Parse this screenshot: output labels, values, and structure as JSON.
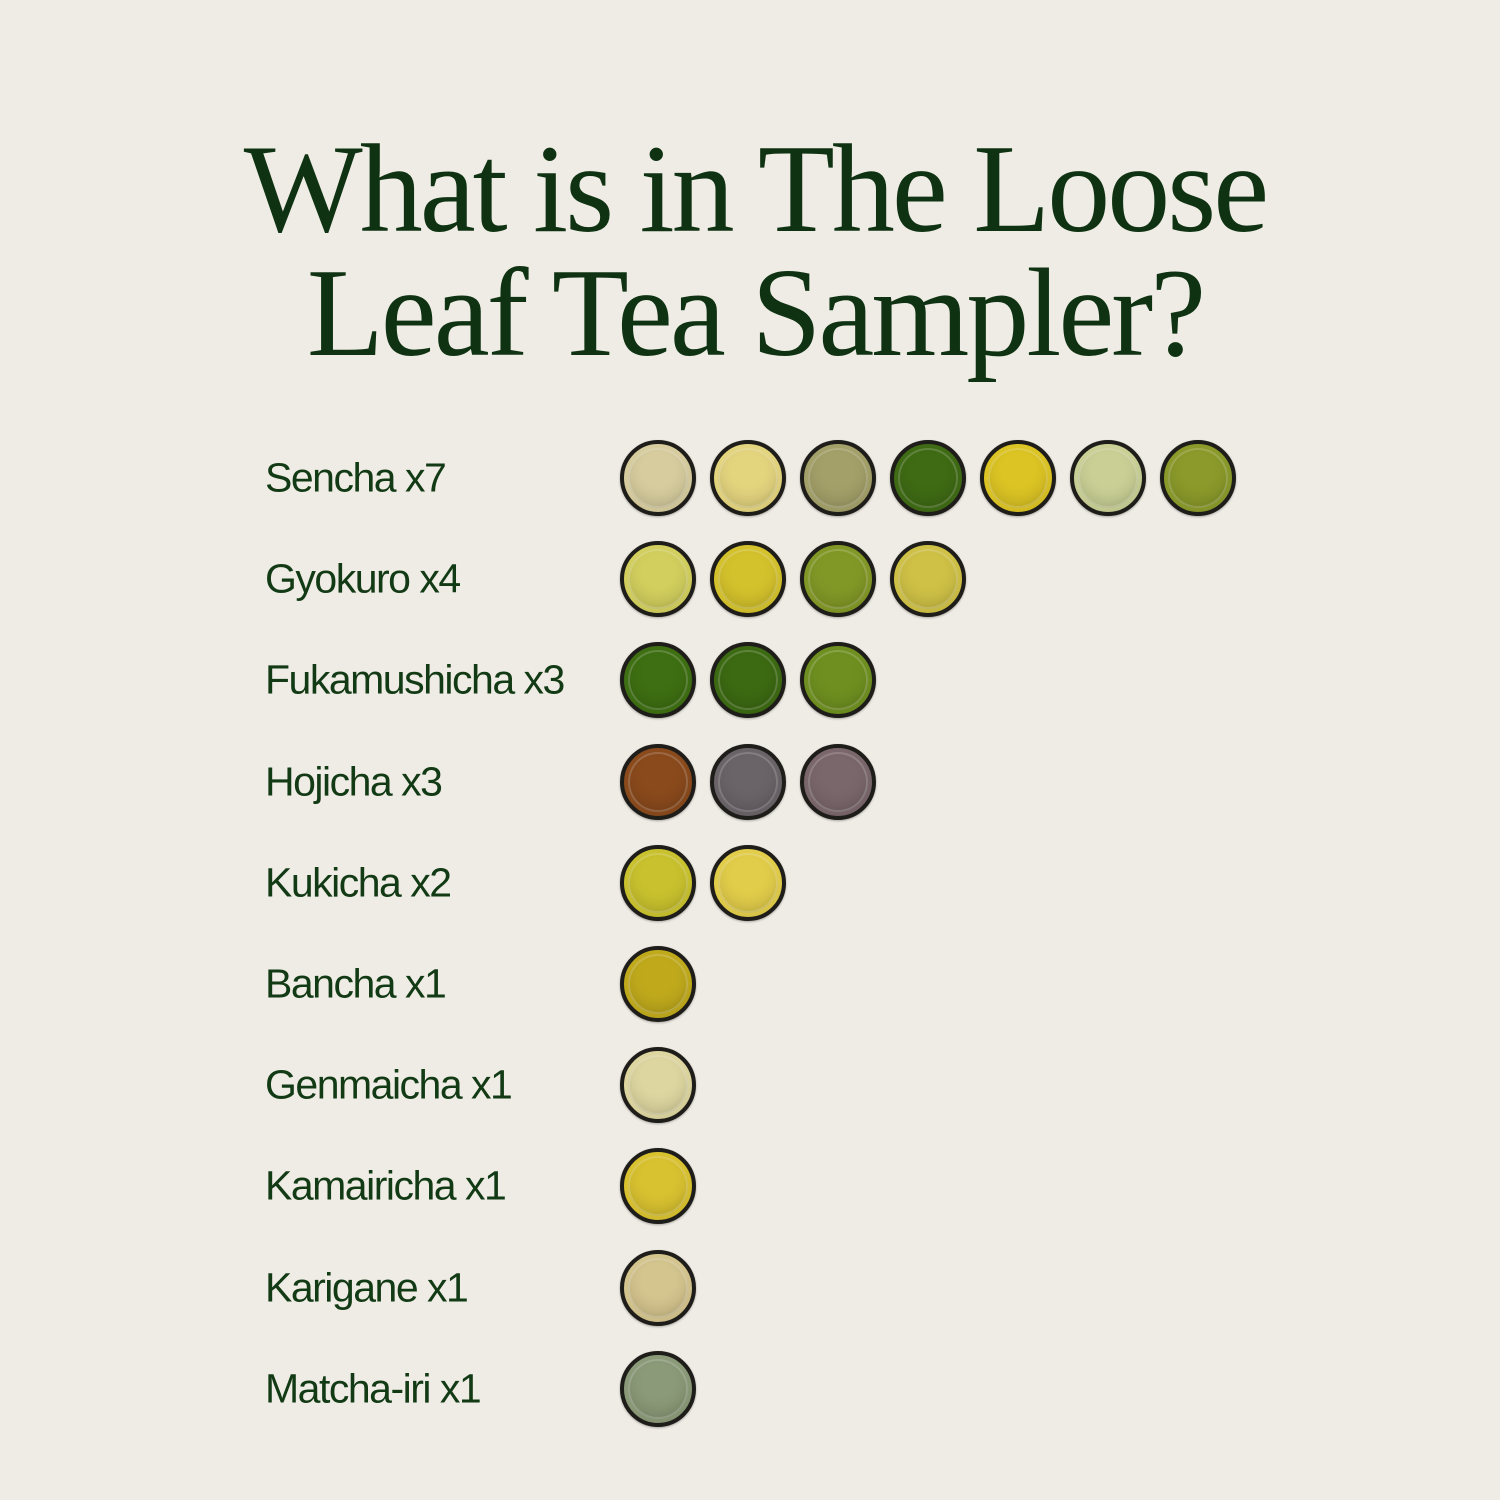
{
  "title": {
    "line1": "What is in The Loose",
    "line2": "Leaf Tea Sampler?"
  },
  "chart_data": {
    "type": "pictogram",
    "title": "What is in The Loose Leaf Tea Sampler?",
    "categories": [
      "Sencha",
      "Gyokuro",
      "Fukamushicha",
      "Hojicha",
      "Kukicha",
      "Bancha",
      "Genmaicha",
      "Kamairicha",
      "Karigane",
      "Matcha-iri"
    ],
    "values": [
      7,
      4,
      3,
      3,
      2,
      1,
      1,
      1,
      1,
      1
    ],
    "labels": [
      "Sencha x7",
      "Gyokuro x4",
      "Fukamushicha x3",
      "Hojicha x3",
      "Kukicha x2",
      "Bancha x1",
      "Genmaicha x1",
      "Kamairicha x1",
      "Karigane x1",
      "Matcha-iri x1"
    ],
    "cup_colors": [
      [
        "#d6cc9e",
        "#e3d47e",
        "#a3a069",
        "#3f6b14",
        "#dcc424",
        "#c9cf95",
        "#8b9a2a"
      ],
      [
        "#d2cf5e",
        "#d4c22c",
        "#829826",
        "#cfc146"
      ],
      [
        "#3e6f12",
        "#3c6a12",
        "#6f9020"
      ],
      [
        "#8a4a1c",
        "#6a6468",
        "#7a676c"
      ],
      [
        "#c9c22e",
        "#e2cd4a"
      ],
      [
        "#c0aa1c"
      ],
      [
        "#ddd6a0"
      ],
      [
        "#d9c230"
      ],
      [
        "#d4c48e"
      ],
      [
        "#8b9a78"
      ]
    ]
  },
  "colors": {
    "background": "#efece5",
    "text": "#0f3312",
    "cup_rim": "#1e1d19"
  }
}
